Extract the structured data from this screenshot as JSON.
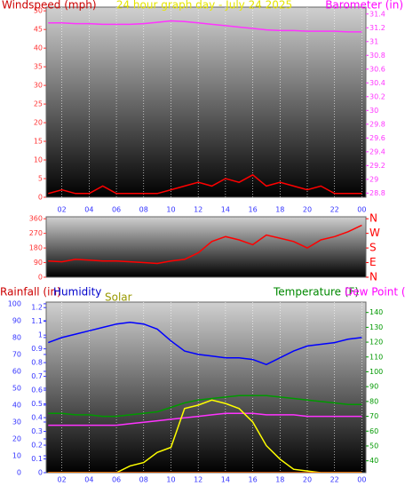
{
  "chart_data": [
    {
      "type": "line",
      "title": "24 hour graph day - July 24 2025",
      "y_label": "Windspeed (mph)",
      "y2_label": "Barometer (in)",
      "xlim": [
        0.85,
        24.3
      ],
      "xticks": [
        {
          "value": 2,
          "label": "02"
        },
        {
          "value": 4,
          "label": "04"
        },
        {
          "value": 6,
          "label": "06"
        },
        {
          "value": 8,
          "label": "08"
        },
        10,
        12,
        14,
        16,
        18,
        20,
        22,
        {
          "value": 24,
          "label": "00"
        }
      ],
      "ylim": [
        0,
        51
      ],
      "yticks": [
        0,
        5,
        10,
        15,
        20,
        25,
        30,
        35,
        40,
        45,
        50
      ],
      "y_color": "#ff3333",
      "y2lim": [
        28.74,
        31.5
      ],
      "y2ticks": [
        28.8,
        29,
        29.2,
        29.4,
        29.6,
        29.8,
        30,
        30.2,
        30.4,
        30.6,
        30.8,
        31,
        31.2,
        31.4
      ],
      "y2_color": "#ff33ff",
      "x": [
        1,
        2,
        3,
        4,
        5,
        6,
        7,
        8,
        9,
        10,
        11,
        12,
        13,
        14,
        15,
        16,
        17,
        18,
        19,
        20,
        21,
        22,
        23,
        24
      ],
      "series": [
        {
          "name": "Windspeed",
          "color": "#ff0000",
          "values": [
            1,
            2,
            1,
            1,
            3,
            1,
            1,
            1,
            1,
            2,
            3,
            4,
            3,
            5,
            4,
            6,
            3,
            4,
            3,
            2,
            3,
            1,
            1,
            1
          ]
        },
        {
          "name": "Barometer",
          "color": "#ff33ff",
          "axis": "y2",
          "values": [
            31.27,
            31.27,
            31.26,
            31.26,
            31.25,
            31.25,
            31.25,
            31.26,
            31.28,
            31.3,
            31.29,
            31.27,
            31.25,
            31.23,
            31.21,
            31.19,
            31.17,
            31.16,
            31.16,
            31.15,
            31.15,
            31.15,
            31.14,
            31.14
          ]
        }
      ]
    },
    {
      "type": "line",
      "xlim": [
        0.85,
        24.3
      ],
      "ylim": [
        0,
        372
      ],
      "yticks": [
        0,
        90,
        180,
        270,
        360
      ],
      "y_color": "#ff3333",
      "y2lim": [
        0,
        372
      ],
      "y2ticks": [
        {
          "value": 0,
          "label": "N"
        },
        {
          "value": 90,
          "label": "E"
        },
        {
          "value": 180,
          "label": "S"
        },
        {
          "value": 270,
          "label": "W"
        },
        {
          "value": 360,
          "label": "N"
        }
      ],
      "y2_color": "#ff0000",
      "x": [
        1,
        2,
        3,
        4,
        5,
        6,
        7,
        8,
        9,
        10,
        11,
        12,
        13,
        14,
        15,
        16,
        17,
        18,
        19,
        20,
        21,
        22,
        23,
        24
      ],
      "series": [
        {
          "name": "Direction",
          "color": "#ff0000",
          "values": [
            100,
            95,
            110,
            105,
            100,
            100,
            95,
            90,
            85,
            100,
            110,
            150,
            220,
            250,
            230,
            200,
            260,
            240,
            220,
            180,
            230,
            250,
            280,
            320
          ]
        }
      ]
    },
    {
      "type": "line",
      "y_label": "Humidity",
      "y3_label": "Rainfall (in)",
      "solar_label": "Solar",
      "y2_label": "Temperature (F)",
      "dew_label": "Dew Point (",
      "xlim": [
        0.85,
        24.3
      ],
      "xticks": [
        {
          "value": 2,
          "label": "02"
        },
        {
          "value": 4,
          "label": "04"
        },
        {
          "value": 6,
          "label": "06"
        },
        {
          "value": 8,
          "label": "08"
        },
        10,
        12,
        14,
        16,
        18,
        20,
        22,
        {
          "value": 24,
          "label": "00"
        }
      ],
      "ylim": [
        0,
        101
      ],
      "yticks": [
        0,
        10,
        20,
        30,
        40,
        50,
        60,
        70,
        80,
        90,
        100
      ],
      "y_color": "#3333ff",
      "y3lim": [
        0,
        1.24
      ],
      "y3ticks": [
        0,
        0.1,
        0.2,
        0.3,
        0.4,
        0.5,
        0.6,
        0.7,
        0.8,
        0.9,
        1,
        1.1,
        1.2
      ],
      "y3_color": "#3333ff",
      "y2lim": [
        32,
        147
      ],
      "y2ticks": [
        40,
        50,
        60,
        70,
        80,
        90,
        100,
        110,
        120,
        130,
        140
      ],
      "y2_color": "#009900",
      "x": [
        1,
        2,
        3,
        4,
        5,
        6,
        7,
        8,
        9,
        10,
        11,
        12,
        13,
        14,
        15,
        16,
        17,
        18,
        19,
        20,
        21,
        22,
        23,
        24
      ],
      "series": [
        {
          "name": "Humidity",
          "color": "#0000ff",
          "values": [
            77,
            80,
            82,
            84,
            86,
            88,
            89,
            88,
            85,
            78,
            72,
            70,
            69,
            68,
            68,
            67,
            64,
            68,
            72,
            75,
            76,
            77,
            79,
            80
          ]
        },
        {
          "name": "Temperature",
          "color": "#009900",
          "axis": "y2",
          "values": [
            72,
            72,
            71,
            71,
            70,
            70,
            71,
            72,
            73,
            76,
            79,
            81,
            82,
            83,
            84,
            84,
            84,
            83,
            82,
            81,
            80,
            79,
            78,
            78
          ]
        },
        {
          "name": "Dew Point",
          "color": "#ff33ff",
          "axis": "y2",
          "values": [
            64,
            64,
            64,
            64,
            64,
            64,
            65,
            66,
            67,
            68,
            69,
            70,
            71,
            72,
            72,
            72,
            71,
            71,
            71,
            70,
            70,
            70,
            70,
            70
          ]
        },
        {
          "name": "Solar",
          "color": "#ffff00",
          "values": [
            0,
            0,
            0,
            0,
            0,
            0,
            4,
            6,
            12,
            15,
            38,
            40,
            43,
            41,
            38,
            30,
            16,
            8,
            2,
            1,
            0,
            0,
            0,
            0
          ]
        },
        {
          "name": "Rainfall",
          "color": "#ff6600",
          "axis": "y3",
          "values": [
            0,
            0,
            0,
            0,
            0,
            0,
            0,
            0,
            0,
            0,
            0,
            0,
            0,
            0,
            0,
            0,
            0,
            0,
            0,
            0,
            0,
            0,
            0,
            0
          ]
        }
      ]
    }
  ]
}
